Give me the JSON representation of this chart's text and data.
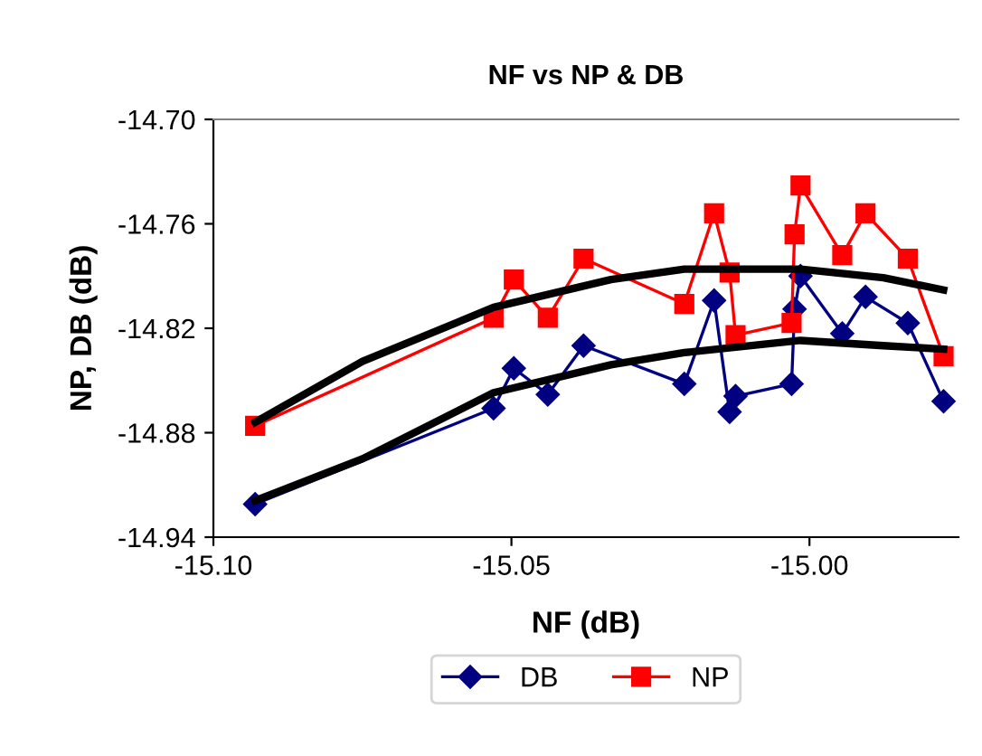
{
  "chart_data": {
    "type": "line",
    "title": "NF vs NP & DB",
    "xlabel": "NF (dB)",
    "ylabel": "NP, DB (dB)",
    "xlim": [
      -15.1,
      -14.975
    ],
    "xticks": [
      {
        "value": -15.1,
        "label": "-15.10"
      },
      {
        "value": -15.05,
        "label": "-15.05"
      },
      {
        "value": -15.0,
        "label": "-15.00"
      }
    ],
    "ylim": [
      -14.94,
      -14.7
    ],
    "yticks": [
      {
        "value": -14.94,
        "label": "-14.94"
      },
      {
        "value": -14.88,
        "label": "-14.88"
      },
      {
        "value": -14.82,
        "label": "-14.82"
      },
      {
        "value": -14.76,
        "label": "-14.76"
      },
      {
        "value": -14.7,
        "label": "-14.70"
      }
    ],
    "grid": false,
    "legend": "bottom",
    "series": [
      {
        "name": "DB",
        "color": "#000080",
        "marker": "diamond",
        "x": [
          -15.093,
          -15.053,
          -15.0496,
          -15.0439,
          -15.0379,
          -15.021,
          -15.016,
          -15.0134,
          -15.0124,
          -15.003,
          -15.0025,
          -15.0015,
          -14.9945,
          -14.9906,
          -14.9835,
          -14.9775
        ],
        "values": [
          -14.921,
          -14.866,
          -14.843,
          -14.858,
          -14.83,
          -14.852,
          -14.804,
          -14.868,
          -14.859,
          -14.852,
          -14.809,
          -14.79,
          -14.823,
          -14.802,
          -14.817,
          -14.862
        ]
      },
      {
        "name": "NP",
        "color": "#ff0000",
        "marker": "square",
        "x": [
          -15.093,
          -15.053,
          -15.0496,
          -15.0439,
          -15.0379,
          -15.021,
          -15.016,
          -15.0134,
          -15.0124,
          -15.003,
          -15.0025,
          -15.0015,
          -14.9945,
          -14.9906,
          -14.9835,
          -14.9775
        ],
        "values": [
          -14.876,
          -14.814,
          -14.792,
          -14.814,
          -14.78,
          -14.806,
          -14.754,
          -14.788,
          -14.824,
          -14.817,
          -14.766,
          -14.738,
          -14.778,
          -14.754,
          -14.78,
          -14.836
        ]
      },
      {
        "color": "#000000",
        "marker": "none",
        "x": [
          -15.093,
          -15.075,
          -15.053,
          -15.0333,
          -15.021,
          -15.0015,
          -14.9876,
          -14.9775
        ],
        "values": [
          -14.874,
          -14.839,
          -14.808,
          -14.792,
          -14.786,
          -14.786,
          -14.791,
          -14.798
        ]
      },
      {
        "color": "#000000",
        "marker": "none",
        "x": [
          -15.093,
          -15.075,
          -15.053,
          -15.0333,
          -15.021,
          -15.0015,
          -14.9876,
          -14.9775
        ],
        "values": [
          -14.919,
          -14.895,
          -14.857,
          -14.841,
          -14.834,
          -14.827,
          -14.83,
          -14.832
        ]
      }
    ]
  }
}
